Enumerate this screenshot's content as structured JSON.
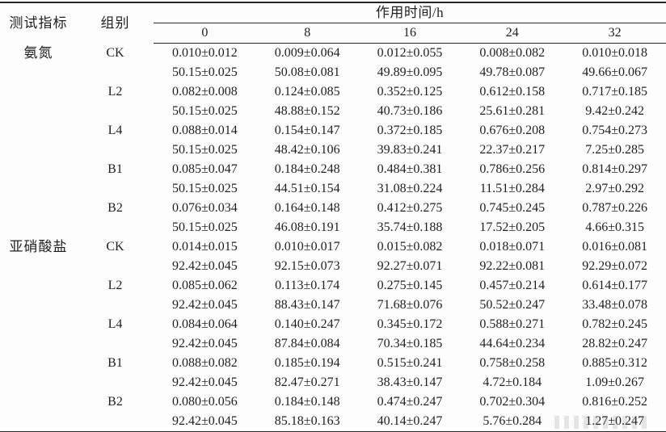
{
  "table": {
    "header": {
      "col_indicator": "测试指标",
      "col_group": "组别",
      "time_span": "作用时间/h",
      "time_cols": [
        "0",
        "8",
        "16",
        "24",
        "32"
      ]
    },
    "sections": [
      {
        "indicator": "氨氮",
        "groups": [
          {
            "name": "CK",
            "rows": [
              [
                "0.010±0.012",
                "0.009±0.064",
                "0.012±0.055",
                "0.008±0.082",
                "0.010±0.018"
              ],
              [
                "50.15±0.025",
                "50.08±0.081",
                "49.89±0.095",
                "49.78±0.087",
                "49.66±0.067"
              ]
            ]
          },
          {
            "name": "L2",
            "rows": [
              [
                "0.082±0.008",
                "0.124±0.085",
                "0.352±0.125",
                "0.612±0.158",
                "0.717±0.185"
              ],
              [
                "50.15±0.025",
                "48.88±0.152",
                "40.73±0.186",
                "25.61±0.281",
                "9.42±0.242"
              ]
            ]
          },
          {
            "name": "L4",
            "rows": [
              [
                "0.088±0.014",
                "0.154±0.147",
                "0.372±0.185",
                "0.676±0.208",
                "0.754±0.273"
              ],
              [
                "50.15±0.025",
                "48.42±0.106",
                "39.83±0.241",
                "22.37±0.217",
                "7.25±0.285"
              ]
            ]
          },
          {
            "name": "B1",
            "rows": [
              [
                "0.085±0.047",
                "0.184±0.248",
                "0.484±0.381",
                "0.786±0.256",
                "0.814±0.297"
              ],
              [
                "50.15±0.025",
                "44.51±0.154",
                "31.08±0.224",
                "11.51±0.284",
                "2.97±0.292"
              ]
            ]
          },
          {
            "name": "B2",
            "rows": [
              [
                "0.076±0.034",
                "0.164±0.148",
                "0.412±0.275",
                "0.745±0.245",
                "0.787±0.226"
              ],
              [
                "50.15±0.025",
                "46.08±0.191",
                "35.74±0.188",
                "17.52±0.205",
                "4.66±0.315"
              ]
            ]
          }
        ]
      },
      {
        "indicator": "亚硝酸盐",
        "groups": [
          {
            "name": "CK",
            "rows": [
              [
                "0.014±0.015",
                "0.010±0.017",
                "0.015±0.082",
                "0.018±0.071",
                "0.016±0.081"
              ],
              [
                "92.42±0.045",
                "92.15±0.073",
                "92.27±0.071",
                "92.22±0.081",
                "92.29±0.072"
              ]
            ]
          },
          {
            "name": "L2",
            "rows": [
              [
                "0.085±0.062",
                "0.113±0.174",
                "0.275±0.145",
                "0.457±0.214",
                "0.614±0.177"
              ],
              [
                "92.42±0.045",
                "88.43±0.147",
                "71.68±0.076",
                "50.52±0.247",
                "33.48±0.078"
              ]
            ]
          },
          {
            "name": "L4",
            "rows": [
              [
                "0.084±0.064",
                "0.140±0.247",
                "0.345±0.172",
                "0.588±0.271",
                "0.782±0.245"
              ],
              [
                "92.42±0.045",
                "87.84±0.084",
                "70.34±0.185",
                "44.64±0.234",
                "28.82±0.247"
              ]
            ]
          },
          {
            "name": "B1",
            "rows": [
              [
                "0.088±0.082",
                "0.185±0.194",
                "0.515±0.241",
                "0.758±0.258",
                "0.885±0.312"
              ],
              [
                "92.42±0.045",
                "82.47±0.271",
                "38.43±0.147",
                "4.72±0.184",
                "1.09±0.267"
              ]
            ]
          },
          {
            "name": "B2",
            "rows": [
              [
                "0.080±0.056",
                "0.184±0.148",
                "0.474±0.247",
                "0.702±0.304",
                "0.816±0.252"
              ],
              [
                "92.42±0.045",
                "85.18±0.163",
                "40.14±0.247",
                "5.76±0.284",
                "1.27±0.247"
              ]
            ]
          }
        ]
      }
    ]
  }
}
